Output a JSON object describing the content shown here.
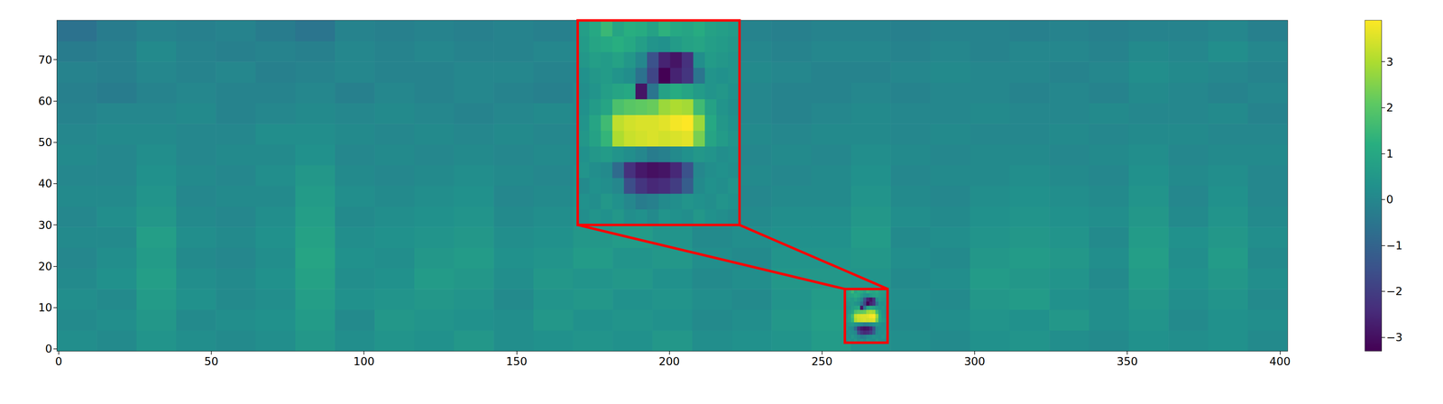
{
  "chart_data": {
    "type": "heatmap",
    "xlim": [
      -0.5,
      402.5
    ],
    "xticks": [
      0,
      50,
      100,
      150,
      200,
      250,
      300,
      350,
      400
    ],
    "ylim": [
      -0.5,
      79.5
    ],
    "yticks": [
      0,
      10,
      20,
      30,
      40,
      50,
      60,
      70
    ],
    "grid": false,
    "cells": {
      "x_edges": [
        -0.5,
        12.5,
        25.5,
        38.5,
        51.5,
        64.5,
        77.5,
        90.5,
        103.5,
        116.5,
        129.5,
        142.5,
        155.5,
        168.5,
        181.5,
        194.5,
        207.5,
        220.5,
        233.5,
        246.5,
        259.5,
        272.5,
        285.5,
        298.5,
        311.5,
        324.5,
        337.5,
        350.5,
        363.5,
        376.5,
        389.5,
        402.5
      ],
      "y_edges": [
        -0.5,
        4.5,
        9.5,
        14.5,
        19.5,
        24.5,
        29.5,
        34.5,
        39.5,
        44.5,
        49.5,
        54.5,
        59.5,
        64.5,
        69.5,
        74.5,
        79.5
      ],
      "values": [
        [
          0.2,
          0.1,
          0.4,
          0.2,
          0.1,
          0.2,
          0.5,
          0.2,
          0.4,
          0.3,
          0.5,
          0.2,
          0.3,
          0.4,
          0.3,
          0.5,
          0.2,
          0.3,
          0.4,
          0.6,
          0.3,
          0.2,
          0.1,
          0.3,
          0.4,
          0.2,
          0.1,
          0.3,
          0.2,
          0.3,
          0.1
        ],
        [
          0.1,
          0.2,
          0.5,
          0.1,
          0.2,
          0.3,
          0.6,
          0.1,
          0.5,
          0.4,
          0.3,
          0.2,
          0.5,
          0.3,
          0.4,
          0.3,
          0.1,
          0.2,
          0.5,
          0.7,
          0.3,
          0.1,
          0.2,
          0.4,
          0.3,
          0.5,
          0.2,
          0.4,
          0.1,
          0.3,
          0.2
        ],
        [
          0.2,
          0.1,
          0.6,
          0.3,
          0.1,
          0.2,
          0.7,
          0.3,
          0.4,
          0.5,
          0.4,
          0.1,
          0.4,
          0.5,
          0.3,
          0.4,
          0.2,
          0.1,
          0.4,
          0.6,
          0.3,
          0.2,
          0.1,
          0.5,
          0.6,
          0.3,
          0.2,
          0.5,
          0.2,
          0.4,
          0.1
        ],
        [
          0.1,
          0.3,
          0.7,
          0.2,
          0.1,
          0.3,
          0.8,
          0.2,
          0.3,
          0.6,
          0.5,
          0.2,
          0.5,
          0.4,
          0.5,
          0.3,
          0.1,
          0.2,
          0.5,
          0.5,
          0.4,
          0.1,
          0.2,
          0.6,
          0.5,
          0.4,
          0.1,
          0.6,
          0.3,
          0.5,
          0.2
        ],
        [
          0.0,
          0.2,
          0.6,
          0.1,
          0.0,
          0.2,
          0.9,
          0.3,
          0.2,
          0.5,
          0.6,
          0.3,
          0.4,
          0.6,
          0.4,
          0.5,
          0.2,
          0.1,
          0.4,
          0.4,
          0.5,
          0.2,
          0.1,
          0.5,
          0.6,
          0.5,
          0.2,
          0.7,
          0.2,
          0.6,
          0.1
        ],
        [
          0.1,
          0.1,
          0.7,
          0.2,
          0.1,
          0.3,
          0.8,
          0.2,
          0.3,
          0.4,
          0.5,
          0.2,
          0.3,
          0.5,
          0.6,
          0.4,
          0.1,
          0.2,
          0.3,
          0.3,
          0.6,
          0.1,
          0.2,
          0.4,
          0.5,
          0.4,
          0.1,
          0.6,
          0.3,
          0.5,
          0.2
        ],
        [
          0.0,
          0.2,
          0.5,
          0.1,
          0.0,
          0.2,
          0.7,
          0.1,
          0.2,
          0.3,
          0.4,
          0.1,
          0.2,
          0.4,
          0.5,
          0.3,
          0.0,
          0.1,
          0.2,
          0.2,
          0.5,
          0.2,
          0.1,
          0.3,
          0.4,
          0.3,
          0.2,
          0.5,
          0.1,
          0.4,
          0.1
        ],
        [
          0.1,
          0.1,
          0.4,
          0.0,
          0.1,
          0.1,
          0.6,
          0.2,
          0.1,
          0.2,
          0.3,
          0.0,
          0.1,
          0.3,
          0.4,
          0.2,
          0.1,
          0.0,
          0.1,
          0.1,
          0.4,
          0.1,
          0.0,
          0.2,
          0.3,
          0.2,
          0.1,
          0.4,
          0.0,
          0.3,
          0.0
        ],
        [
          0.0,
          0.0,
          0.3,
          0.1,
          0.0,
          0.2,
          0.5,
          0.1,
          0.0,
          0.1,
          0.2,
          0.1,
          0.0,
          0.2,
          0.2,
          0.1,
          0.0,
          0.1,
          0.0,
          0.1,
          0.3,
          0.0,
          0.1,
          0.1,
          0.2,
          0.1,
          0.0,
          0.3,
          0.1,
          0.2,
          0.0
        ],
        [
          0.1,
          0.0,
          0.2,
          0.0,
          0.1,
          0.1,
          0.3,
          0.0,
          0.1,
          0.0,
          0.1,
          0.0,
          0.1,
          0.1,
          0.1,
          0.0,
          0.1,
          0.0,
          0.1,
          0.0,
          0.2,
          0.1,
          0.0,
          0.1,
          0.1,
          0.0,
          0.1,
          0.2,
          0.0,
          0.1,
          0.1
        ],
        [
          0.0,
          0.1,
          0.1,
          0.0,
          0.0,
          0.2,
          0.2,
          0.1,
          0.0,
          0.1,
          0.0,
          0.1,
          0.0,
          0.0,
          0.1,
          0.0,
          0.0,
          0.1,
          0.0,
          0.1,
          0.1,
          0.0,
          0.1,
          0.0,
          0.0,
          0.1,
          0.0,
          0.1,
          0.1,
          0.0,
          0.0
        ],
        [
          -0.1,
          0.0,
          0.0,
          0.1,
          -0.1,
          0.0,
          0.1,
          0.0,
          0.1,
          0.0,
          -0.1,
          0.0,
          0.1,
          0.0,
          0.0,
          0.1,
          0.0,
          0.0,
          -0.1,
          0.0,
          0.1,
          0.0,
          0.0,
          0.1,
          0.0,
          0.0,
          0.1,
          0.0,
          0.0,
          0.1,
          -0.1
        ],
        [
          -0.2,
          -0.3,
          -0.1,
          0.0,
          -0.1,
          -0.1,
          0.0,
          -0.2,
          0.0,
          -0.1,
          0.0,
          -0.1,
          -0.2,
          0.0,
          -0.1,
          0.0,
          -0.1,
          0.0,
          -0.1,
          -0.1,
          0.0,
          -0.1,
          0.0,
          0.0,
          -0.1,
          0.0,
          -0.1,
          0.1,
          0.0,
          -0.1,
          0.0
        ],
        [
          -0.1,
          -0.2,
          0.0,
          -0.1,
          0.0,
          -0.2,
          -0.1,
          0.0,
          -0.1,
          -0.1,
          0.0,
          0.0,
          -0.1,
          -0.1,
          0.0,
          -0.1,
          0.0,
          0.1,
          0.0,
          -0.1,
          -0.1,
          0.0,
          0.1,
          0.0,
          0.0,
          -0.1,
          0.0,
          0.2,
          0.1,
          0.0,
          -0.1
        ],
        [
          -0.3,
          -0.2,
          0.1,
          -0.1,
          -0.2,
          -0.1,
          -0.2,
          0.0,
          -0.1,
          0.0,
          -0.1,
          -0.1,
          0.0,
          0.0,
          -0.1,
          0.0,
          0.1,
          0.0,
          -0.1,
          0.0,
          0.0,
          -0.1,
          0.0,
          -0.1,
          0.0,
          0.0,
          -0.1,
          0.1,
          0.0,
          0.2,
          0.0
        ],
        [
          -0.6,
          -0.3,
          -0.1,
          -0.2,
          -0.1,
          -0.3,
          -0.5,
          -0.1,
          -0.2,
          -0.1,
          -0.2,
          -0.1,
          -0.2,
          -0.1,
          -0.1,
          -0.2,
          -0.1,
          -0.1,
          -0.2,
          -0.1,
          -0.1,
          -0.2,
          -0.1,
          -0.1,
          -0.2,
          -0.1,
          -0.2,
          -0.1,
          -0.1,
          0.0,
          -0.2
        ]
      ]
    },
    "zoom": {
      "x_edges": [
        257.5,
        258.5,
        259.5,
        260.5,
        261.5,
        262.5,
        263.5,
        264.5,
        265.5,
        266.5,
        267.5,
        268.5,
        269.5,
        270.5,
        271.5
      ],
      "y_edges": [
        1.5,
        2.5,
        3.5,
        4.5,
        5.5,
        6.5,
        7.5,
        8.5,
        9.5,
        10.5,
        11.5,
        12.5,
        13.5,
        14.5
      ],
      "values": [
        [
          0.2,
          0.4,
          0.3,
          0.5,
          0.2,
          0.3,
          0.1,
          0.4,
          0.3,
          0.2,
          0.5,
          0.3,
          0.2,
          0.1
        ],
        [
          0.3,
          0.2,
          0.5,
          0.3,
          0.0,
          -0.3,
          -0.2,
          0.1,
          0.2,
          0.4,
          0.3,
          0.2,
          0.4,
          0.3
        ],
        [
          0.1,
          0.3,
          0.2,
          0.0,
          -1.6,
          -2.2,
          -2.5,
          -2.4,
          -2.0,
          -1.2,
          0.1,
          0.3,
          0.2,
          0.4
        ],
        [
          0.4,
          0.2,
          0.1,
          -0.8,
          -2.3,
          -2.8,
          -3.0,
          -2.9,
          -2.5,
          -1.5,
          0.0,
          0.2,
          0.3,
          0.2
        ],
        [
          0.3,
          0.5,
          0.6,
          0.4,
          0.2,
          0.0,
          -0.3,
          -0.2,
          0.1,
          0.3,
          0.5,
          0.4,
          0.2,
          0.3
        ],
        [
          0.5,
          0.8,
          1.4,
          3.0,
          3.3,
          3.4,
          3.5,
          3.4,
          3.5,
          3.6,
          2.4,
          0.9,
          0.6,
          0.4
        ],
        [
          0.4,
          0.9,
          1.6,
          3.2,
          3.4,
          3.5,
          3.5,
          3.6,
          3.8,
          3.9,
          2.8,
          1.0,
          0.5,
          0.3
        ],
        [
          0.3,
          0.6,
          0.9,
          1.8,
          2.0,
          2.1,
          2.2,
          2.8,
          3.0,
          2.9,
          1.6,
          0.8,
          0.4,
          0.2
        ],
        [
          0.2,
          0.4,
          0.7,
          0.9,
          1.0,
          -2.9,
          -0.5,
          0.8,
          1.1,
          0.9,
          0.6,
          0.4,
          0.5,
          0.3
        ],
        [
          0.3,
          0.5,
          0.6,
          0.4,
          0.2,
          -0.6,
          -1.8,
          -3.3,
          -2.6,
          -2.2,
          -0.5,
          0.4,
          0.3,
          0.4
        ],
        [
          0.5,
          0.7,
          0.6,
          0.8,
          0.5,
          0.0,
          -1.5,
          -2.6,
          -2.9,
          -2.3,
          0.2,
          0.6,
          0.5,
          0.4
        ],
        [
          0.6,
          0.9,
          1.0,
          1.2,
          1.0,
          0.7,
          0.4,
          0.3,
          0.6,
          0.8,
          0.9,
          0.7,
          0.6,
          0.5
        ],
        [
          0.7,
          1.0,
          1.5,
          0.9,
          1.2,
          1.1,
          0.8,
          1.3,
          1.0,
          0.9,
          1.1,
          0.8,
          0.7,
          0.6
        ]
      ]
    },
    "colorbar": {
      "range": [
        -3.3,
        3.9
      ],
      "ticks": [
        {
          "value": -3,
          "label": "−3"
        },
        {
          "value": -2,
          "label": "−2"
        },
        {
          "value": -1,
          "label": "−1"
        },
        0,
        1,
        2,
        3
      ]
    }
  }
}
